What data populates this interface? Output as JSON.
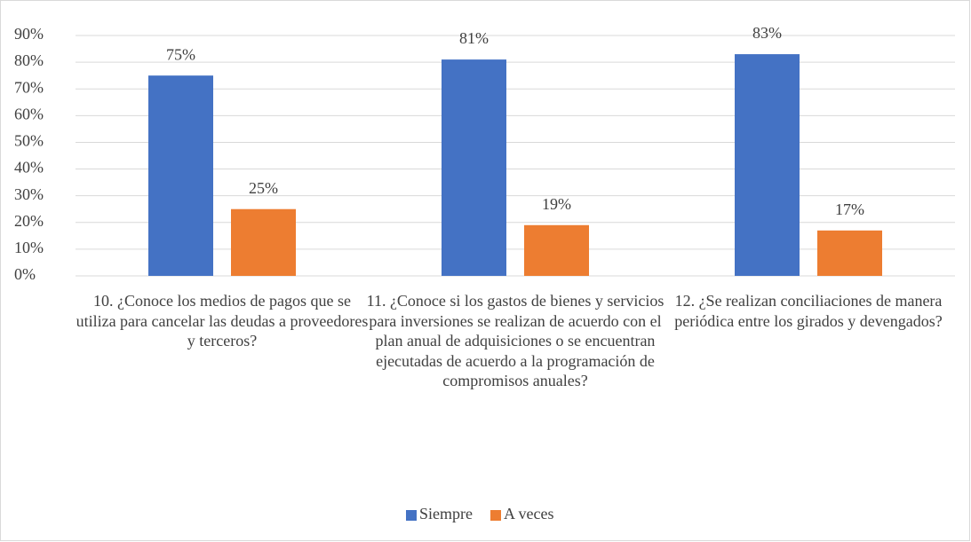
{
  "chart_data": {
    "type": "bar",
    "categories": [
      "10. ¿Conoce los medios de pagos que se utiliza para cancelar las deudas a proveedores y terceros?",
      "11. ¿Conoce si los gastos de bienes y servicios para inversiones se realizan de acuerdo con el plan anual de adquisiciones o se encuentran ejecutadas de acuerdo a la programación de compromisos anuales?",
      "12. ¿Se realizan conciliaciones de manera periódica entre los girados y devengados?"
    ],
    "series": [
      {
        "name": "Siempre",
        "color": "#4472c4",
        "values": [
          75,
          81,
          83
        ],
        "value_labels": [
          "75%",
          "81%",
          "83%"
        ]
      },
      {
        "name": "A veces",
        "color": "#ed7d31",
        "values": [
          25,
          19,
          17
        ],
        "value_labels": [
          "25%",
          "19%",
          "17%"
        ]
      }
    ],
    "ylim": [
      0,
      90
    ],
    "yticks": [
      {
        "value": 0,
        "label": "0%"
      },
      {
        "value": 10,
        "label": "10%"
      },
      {
        "value": 20,
        "label": "20%"
      },
      {
        "value": 30,
        "label": "30%"
      },
      {
        "value": 40,
        "label": "40%"
      },
      {
        "value": 50,
        "label": "50%"
      },
      {
        "value": 60,
        "label": "60%"
      },
      {
        "value": 70,
        "label": "70%"
      },
      {
        "value": 80,
        "label": "80%"
      },
      {
        "value": 90,
        "label": "90%"
      }
    ],
    "grid": true,
    "legend": "bottom"
  }
}
